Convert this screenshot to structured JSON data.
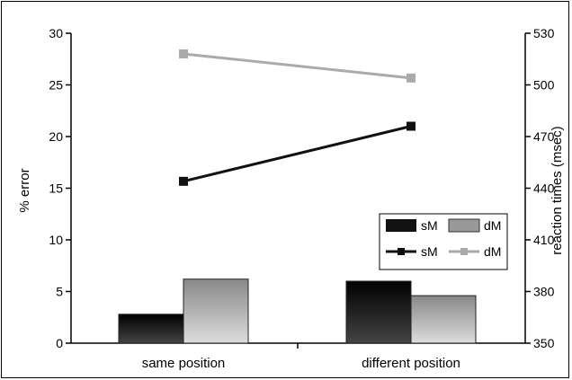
{
  "chart_data": {
    "type": "bar",
    "title": "",
    "categories": [
      "same position",
      "different position"
    ],
    "y_left": {
      "label": "% error",
      "ylim": [
        0,
        30
      ],
      "ticks": [
        0,
        5,
        10,
        15,
        20,
        25,
        30
      ]
    },
    "y_right": {
      "label": "reaction times (msec)",
      "ylim": [
        350,
        530
      ],
      "ticks": [
        350,
        380,
        410,
        440,
        470,
        500,
        530
      ]
    },
    "bar_series": [
      {
        "name": "sM",
        "axis": "left",
        "values": [
          2.8,
          6.0
        ],
        "color": "#111111"
      },
      {
        "name": "dM",
        "axis": "left",
        "values": [
          6.2,
          4.6
        ],
        "color": "#999999"
      }
    ],
    "line_series": [
      {
        "name": "sM",
        "axis": "right",
        "values": [
          444,
          476
        ],
        "color": "#111111"
      },
      {
        "name": "dM",
        "axis": "right",
        "values": [
          518,
          504
        ],
        "color": "#aaaaaa"
      }
    ],
    "legend": {
      "placement": "right",
      "entries": [
        "sM",
        "dM",
        "sM",
        "dM"
      ]
    },
    "grid": false
  }
}
